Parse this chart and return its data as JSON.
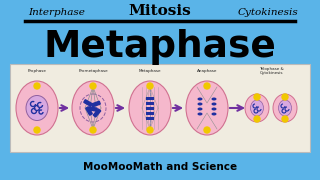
{
  "bg_color": "#5ab4e8",
  "title_top_left": "Interphase",
  "title_top_center": "Mitosis",
  "title_top_right": "Cytokinesis",
  "title_main": "Metaphase",
  "subtitle": "MooMooMath and Science",
  "stages": [
    "Prophase",
    "Prometaphase",
    "Metaphase",
    "Anaphase",
    "Telophase &\nCytokinesis"
  ],
  "diagram_bg": "#f0ece0",
  "cell_color": "#f5b8cc",
  "cell_edge": "#d07090",
  "arrow_color": "#7030a0",
  "nucleus_color": "#d8a8e0",
  "nucleus_edge": "#9060a0",
  "chrom_color": "#2030a0",
  "centriole_color": "#f0c800"
}
